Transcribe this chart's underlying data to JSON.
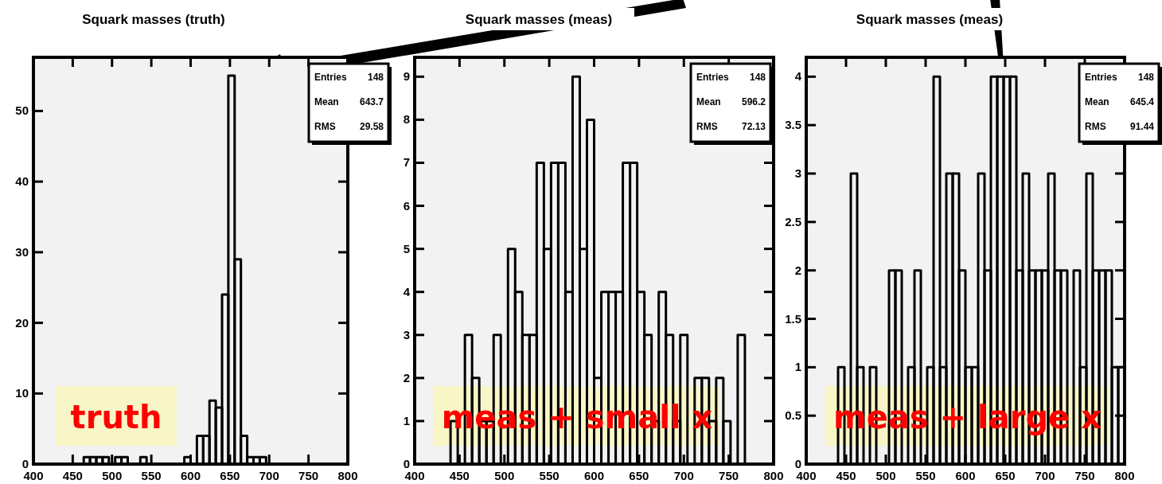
{
  "chart_data": [
    {
      "type": "histogram",
      "title": "Squark masses (truth)",
      "color": "#000000",
      "bins": [
        400,
        408,
        416,
        424,
        432,
        440,
        448,
        456,
        464,
        472,
        480,
        488,
        496,
        504,
        512,
        520,
        528,
        536,
        544,
        552,
        560,
        568,
        576,
        584,
        592,
        600,
        608,
        616,
        624,
        632,
        640,
        648,
        656,
        664,
        672,
        680,
        688,
        696,
        704,
        712,
        720,
        728,
        736,
        744,
        752,
        760,
        768,
        776,
        784,
        792,
        800
      ],
      "values": [
        0,
        0,
        0,
        0,
        0,
        0,
        0,
        0,
        1,
        1,
        1,
        1,
        0,
        1,
        1,
        0,
        0,
        1,
        0,
        0,
        0,
        0,
        0,
        0,
        1,
        0,
        4,
        4,
        9,
        8,
        24,
        55,
        29,
        4,
        1,
        1,
        1,
        0,
        0,
        0,
        0,
        0,
        0,
        0,
        0,
        0,
        0,
        0,
        0,
        0
      ],
      "xlim": [
        400,
        800
      ],
      "xticks": [
        400,
        450,
        500,
        550,
        600,
        650,
        700,
        750,
        800
      ],
      "ylim": [
        0,
        57.6
      ],
      "yticks": [
        0,
        10,
        20,
        30,
        40,
        50
      ],
      "annotations": [
        "Entries 148",
        "Mean 643.7",
        "RMS 29.58",
        "truth"
      ]
    },
    {
      "type": "histogram",
      "title": "Squark masses (meas)",
      "color": "#000000",
      "bins": [
        400,
        408,
        416,
        424,
        432,
        440,
        448,
        456,
        464,
        472,
        480,
        488,
        496,
        504,
        512,
        520,
        528,
        536,
        544,
        552,
        560,
        568,
        576,
        584,
        592,
        600,
        608,
        616,
        624,
        632,
        640,
        648,
        656,
        664,
        672,
        680,
        688,
        696,
        704,
        712,
        720,
        728,
        736,
        744,
        752,
        760,
        768,
        776,
        784,
        792,
        800
      ],
      "values": [
        0,
        0,
        0,
        0,
        0,
        1,
        0,
        3,
        2,
        1,
        1,
        3,
        0,
        5,
        4,
        3,
        3,
        7,
        5,
        7,
        7,
        4,
        9,
        5,
        8,
        2,
        4,
        4,
        4,
        7,
        7,
        4,
        3,
        1,
        4,
        3,
        1,
        3,
        0,
        2,
        2,
        1,
        2,
        1,
        0,
        3,
        0,
        0,
        0,
        0
      ],
      "xlim": [
        400,
        800
      ],
      "xticks": [
        400,
        450,
        500,
        550,
        600,
        650,
        700,
        750,
        800
      ],
      "ylim": [
        0,
        9.45
      ],
      "yticks": [
        0,
        1,
        2,
        3,
        4,
        5,
        6,
        7,
        8,
        9
      ],
      "annotations": [
        "Entries 148",
        "Mean 596.2",
        "RMS 72.13",
        "meas + small x"
      ]
    },
    {
      "type": "histogram",
      "title": "Squark masses (meas)",
      "color": "#000000",
      "bins": [
        400,
        408,
        416,
        424,
        432,
        440,
        448,
        456,
        464,
        472,
        480,
        488,
        496,
        504,
        512,
        520,
        528,
        536,
        544,
        552,
        560,
        568,
        576,
        584,
        592,
        600,
        608,
        616,
        624,
        632,
        640,
        648,
        656,
        664,
        672,
        680,
        688,
        696,
        704,
        712,
        720,
        728,
        736,
        744,
        752,
        760,
        768,
        776,
        784,
        792,
        800
      ],
      "values": [
        0,
        0,
        0,
        0,
        0,
        1,
        0,
        3,
        1,
        0,
        1,
        0,
        0,
        2,
        2,
        0,
        1,
        2,
        0,
        1,
        4,
        1,
        3,
        3,
        2,
        1,
        1,
        3,
        2,
        4,
        4,
        4,
        4,
        2,
        3,
        2,
        2,
        2,
        3,
        2,
        2,
        0,
        2,
        1,
        3,
        2,
        2,
        2,
        1,
        1
      ],
      "xlim": [
        400,
        800
      ],
      "xticks": [
        400,
        450,
        500,
        550,
        600,
        650,
        700,
        750,
        800
      ],
      "ylim": [
        0,
        4.2
      ],
      "yticks": [
        0,
        0.5,
        1,
        1.5,
        2,
        2.5,
        3,
        3.5,
        4
      ],
      "annotations": [
        "Entries 148",
        "Mean 645.4",
        "RMS 91.44",
        "meas + large x"
      ]
    }
  ]
}
